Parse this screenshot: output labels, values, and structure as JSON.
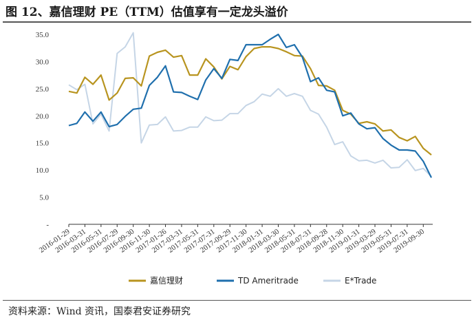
{
  "title": "图 12、嘉信理财 PE（TTM）估值享有一定龙头溢价",
  "source": "资料来源：Wind 资讯，国泰君安证券研究",
  "chart_data": {
    "type": "line",
    "ylim": [
      0,
      35
    ],
    "yticks": [
      "-",
      "5.0",
      "10.0",
      "15.0",
      "20.0",
      "25.0",
      "30.0",
      "35.0"
    ],
    "xticks": [
      "2016-01-29",
      "2016-03-31",
      "2016-05-31",
      "2016-07-29",
      "2016-09-30",
      "2016-11-30",
      "2017-01-26",
      "2017-03-31",
      "2017-05-31",
      "2017-07-31",
      "2017-09-29",
      "2017-11-30",
      "2018-01-31",
      "2018-03-30",
      "2018-05-31",
      "2018-07-31",
      "2018-09-28",
      "2018-11-30",
      "2019-01-31",
      "2019-03-29",
      "2019-05-31",
      "2019-07-31",
      "2019-09-30"
    ],
    "x": [
      0,
      1,
      2,
      3,
      4,
      5,
      6,
      7,
      8,
      9,
      10,
      11,
      12,
      13,
      14,
      15,
      16,
      17,
      18,
      19,
      20,
      21,
      22,
      23,
      24,
      25,
      26,
      27,
      28,
      29,
      30,
      31,
      32,
      33,
      34,
      35,
      36,
      37,
      38,
      39,
      40,
      41,
      42,
      43,
      44
    ],
    "grid": false,
    "legend_position": "bottom",
    "series": [
      {
        "name": "嘉信理财",
        "color": "#b8941f",
        "values": [
          24.5,
          24.2,
          27.1,
          25.8,
          27.5,
          22.9,
          24.2,
          26.9,
          27.0,
          25.5,
          31.0,
          31.7,
          32.1,
          30.8,
          31.1,
          27.5,
          27.5,
          30.5,
          29.0,
          26.8,
          29.1,
          28.5,
          30.9,
          32.4,
          32.7,
          32.7,
          32.4,
          31.8,
          31.1,
          31.0,
          28.7,
          25.6,
          25.5,
          24.7,
          21.0,
          20.3,
          18.6,
          18.9,
          18.5,
          17.2,
          17.4,
          16.0,
          15.4,
          16.2,
          14.0
        ]
      },
      {
        "name": "TD Ameritrade",
        "color": "#1f6fad",
        "values": [
          18.2,
          18.6,
          20.7,
          19.0,
          20.7,
          18.0,
          18.4,
          19.9,
          21.2,
          21.4,
          25.6,
          27.1,
          29.2,
          24.4,
          24.3,
          23.6,
          23.0,
          26.6,
          28.7,
          26.9,
          30.4,
          30.2,
          33.1,
          33.1,
          33.1,
          34.1,
          35.0,
          32.6,
          33.1,
          30.8,
          26.3,
          27.0,
          24.7,
          24.4,
          20.0,
          20.5,
          18.5,
          17.6,
          17.8,
          15.8,
          14.6,
          13.7,
          13.7,
          13.5,
          11.6
        ]
      },
      {
        "name": "E*Trade",
        "color": "#c5d5e6",
        "values": [
          25.7,
          24.8,
          25.8,
          18.5,
          20.3,
          17.2,
          31.5,
          32.7,
          35.3,
          15.0,
          18.3,
          18.4,
          19.8,
          17.2,
          17.3,
          17.9,
          17.9,
          19.8,
          19.1,
          19.2,
          20.4,
          20.4,
          21.9,
          22.6,
          24.0,
          23.6,
          25.0,
          23.6,
          24.1,
          23.6,
          21.0,
          20.3,
          17.9,
          14.7,
          15.2,
          12.6,
          11.7,
          11.8,
          11.3,
          11.8,
          10.4,
          10.5,
          11.9,
          9.9,
          10.3
        ]
      }
    ],
    "series_end": [
      12.8,
      8.6,
      8.8
    ]
  }
}
